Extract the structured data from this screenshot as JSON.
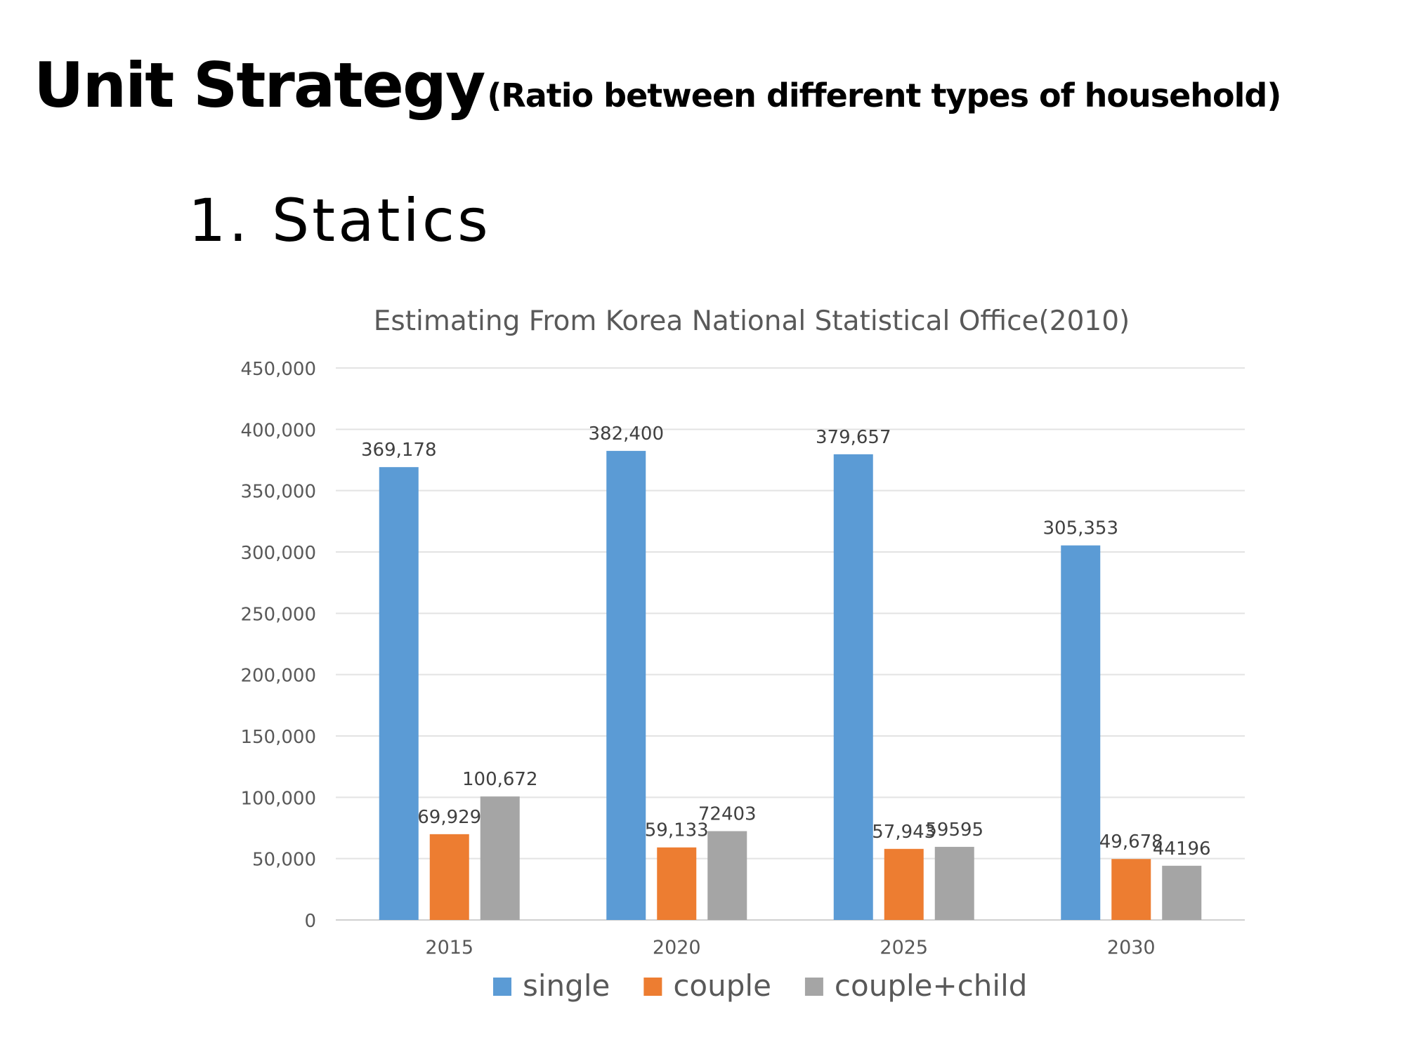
{
  "slide": {
    "title": "Unit Strategy",
    "subtitle": "(Ratio between different types of household)",
    "section": "1. Statics"
  },
  "chart_data": {
    "type": "bar",
    "title": "Estimating From Korea National Statistical Office(2010)",
    "categories": [
      "2015",
      "2020",
      "2025",
      "2030"
    ],
    "ylim": [
      0,
      450000
    ],
    "yticks": [
      0,
      50000,
      100000,
      150000,
      200000,
      250000,
      300000,
      350000,
      400000,
      450000
    ],
    "ytick_labels": [
      "0",
      "50,000",
      "100,000",
      "150,000",
      "200,000",
      "250,000",
      "300,000",
      "350,000",
      "400,000",
      "450,000"
    ],
    "grid": true,
    "legend_position": "bottom",
    "series": [
      {
        "name": "single",
        "color": "#5B9BD5",
        "values": [
          369178,
          382400,
          379657,
          305353
        ],
        "labels": [
          "369,178",
          "382,400",
          "379,657",
          "305,353"
        ]
      },
      {
        "name": "couple",
        "color": "#ED7D31",
        "values": [
          69929,
          59133,
          57943,
          49678
        ],
        "labels": [
          "69,929",
          "59,133",
          "57,943",
          "49,678"
        ]
      },
      {
        "name": "couple+child",
        "color": "#A5A5A5",
        "values": [
          100672,
          72403,
          59595,
          44196
        ],
        "labels": [
          "100,672",
          "72403",
          "59595",
          "44196"
        ]
      }
    ]
  }
}
